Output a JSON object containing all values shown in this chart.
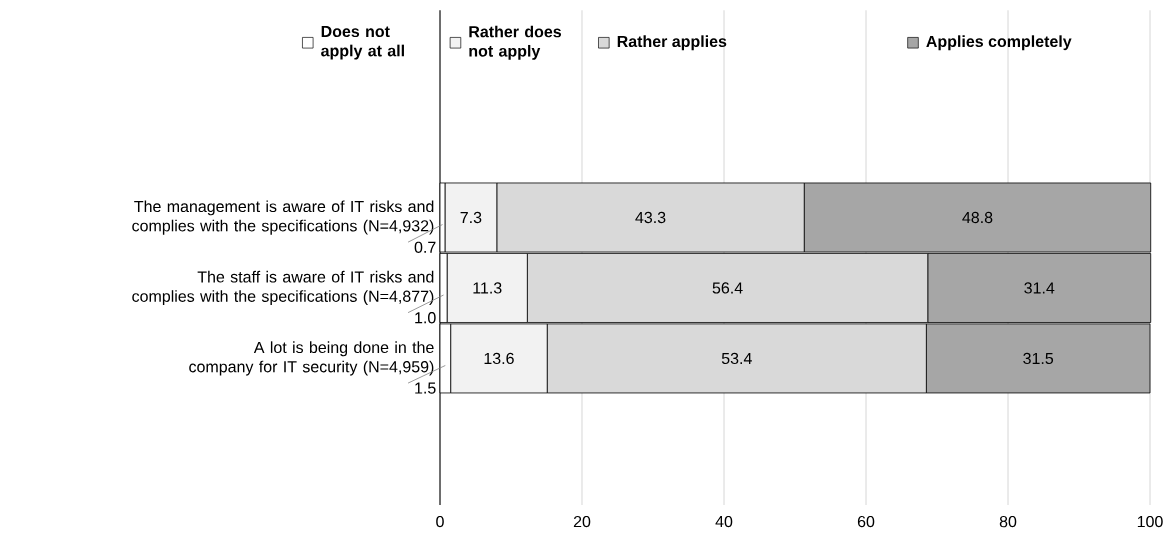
{
  "chart_data": {
    "type": "bar",
    "orientation": "horizontal",
    "stacked": true,
    "categories": [
      "The management is aware of IT risks and complies with the specifications (N=4,932)",
      "The staff is aware of IT risks and complies with the specifications (N=4,877)",
      "A lot is being done in the company for IT security (N=4,959)"
    ],
    "series": [
      {
        "name": "Does not apply at all",
        "color": "#ffffff",
        "values": [
          0.7,
          1.0,
          1.5
        ],
        "value_labels": [
          "0.7",
          "1.0",
          "1.5"
        ]
      },
      {
        "name": "Rather does not apply",
        "color": "#f2f2f2",
        "values": [
          7.3,
          11.3,
          13.6
        ],
        "value_labels": [
          "7.3",
          "11.3",
          "13.6"
        ]
      },
      {
        "name": "Rather applies",
        "color": "#d9d9d9",
        "values": [
          43.3,
          56.4,
          53.4
        ],
        "value_labels": [
          "43.3",
          "56.4",
          "53.4"
        ]
      },
      {
        "name": "Applies completely",
        "color": "#a6a6a6",
        "values": [
          48.8,
          31.4,
          31.5
        ],
        "value_labels": [
          "48.8",
          "31.4",
          "31.5"
        ]
      }
    ],
    "xlim": [
      0,
      100
    ],
    "xticks": [
      0,
      20,
      40,
      60,
      80,
      100
    ],
    "grid": "x",
    "legend": "top"
  }
}
